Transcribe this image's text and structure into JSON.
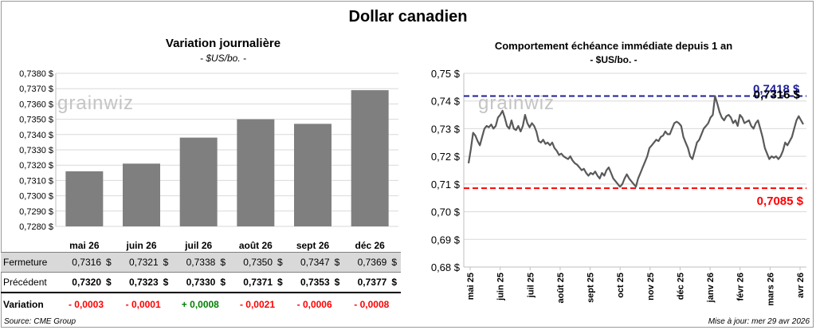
{
  "title": "Dollar canadien",
  "left_panel": {
    "title": "Variation  journalière",
    "subtitle": "- $US/bo. -"
  },
  "right_panel": {
    "title": "Comportement échéance immédiate depuis 1 an",
    "subtitle": "- $US/bo. -"
  },
  "watermark": "grainwiz",
  "chart_data": [
    {
      "type": "bar",
      "categories": [
        "mai 26",
        "juin 26",
        "juil 26",
        "août 26",
        "sept 26",
        "déc 26"
      ],
      "values": [
        0.7316,
        0.7321,
        0.7338,
        0.735,
        0.7347,
        0.7369
      ],
      "ylim": [
        0.728,
        0.738
      ],
      "yticks": [
        "0,7280 $",
        "0,7290 $",
        "0,7300 $",
        "0,7310 $",
        "0,7320 $",
        "0,7330 $",
        "0,7340 $",
        "0,7350 $",
        "0,7360 $",
        "0,7370 $",
        "0,7380 $"
      ],
      "bar_color": "#7f7f7f",
      "grid": true
    },
    {
      "type": "line",
      "ylim": [
        0.68,
        0.75
      ],
      "yticks": [
        "0,68 $",
        "0,69 $",
        "0,70 $",
        "0,71 $",
        "0,72 $",
        "0,73 $",
        "0,74 $",
        "0,75 $"
      ],
      "xticks": [
        "mai 25",
        "juin 25",
        "juil 25",
        "août 25",
        "sept 25",
        "oct 25",
        "nov 25",
        "déc 25",
        "janv 26",
        "févr 26",
        "mars 26",
        "avr 26"
      ],
      "series": [
        {
          "color": "#595959",
          "values": [
            0.7175,
            0.7225,
            0.7285,
            0.7275,
            0.7255,
            0.724,
            0.727,
            0.73,
            0.731,
            0.7305,
            0.7315,
            0.73,
            0.731,
            0.734,
            0.735,
            0.7365,
            0.734,
            0.731,
            0.73,
            0.733,
            0.73,
            0.7295,
            0.731,
            0.729,
            0.731,
            0.735,
            0.732,
            0.7305,
            0.732,
            0.731,
            0.729,
            0.7255,
            0.725,
            0.726,
            0.7245,
            0.725,
            0.724,
            0.725,
            0.723,
            0.722,
            0.7205,
            0.721,
            0.72,
            0.7195,
            0.719,
            0.72,
            0.7185,
            0.7175,
            0.717,
            0.716,
            0.715,
            0.7155,
            0.714,
            0.713,
            0.714,
            0.7135,
            0.7145,
            0.713,
            0.712,
            0.714,
            0.713,
            0.715,
            0.716,
            0.714,
            0.712,
            0.711,
            0.71,
            0.709,
            0.71,
            0.712,
            0.7135,
            0.712,
            0.711,
            0.71,
            0.709,
            0.712,
            0.714,
            0.716,
            0.718,
            0.72,
            0.723,
            0.724,
            0.725,
            0.726,
            0.7255,
            0.727,
            0.7275,
            0.729,
            0.728,
            0.728,
            0.73,
            0.732,
            0.7325,
            0.732,
            0.731,
            0.727,
            0.725,
            0.723,
            0.72,
            0.719,
            0.722,
            0.725,
            0.726,
            0.728,
            0.73,
            0.731,
            0.732,
            0.734,
            0.735,
            0.7418,
            0.739,
            0.736,
            0.734,
            0.733,
            0.7345,
            0.735,
            0.734,
            0.732,
            0.733,
            0.731,
            0.735,
            0.734,
            0.732,
            0.7325,
            0.733,
            0.731,
            0.73,
            0.732,
            0.733,
            0.73,
            0.727,
            0.723,
            0.721,
            0.719,
            0.72,
            0.7195,
            0.72,
            0.719,
            0.72,
            0.722,
            0.725,
            0.724,
            0.7255,
            0.727,
            0.73,
            0.733,
            0.7345,
            0.733,
            0.7316
          ]
        }
      ],
      "reference_lines": [
        {
          "value": 0.7418,
          "label": "0,7418 $",
          "color": "#1f1f9a"
        },
        {
          "value": 0.7085,
          "label": "0,7085 $",
          "color": "#ff0000"
        }
      ],
      "last_label": "0,7316 $",
      "grid": true
    }
  ],
  "table": {
    "rows": [
      {
        "label": "Fermeture",
        "values": [
          "0,7316",
          "0,7321",
          "0,7338",
          "0,7350",
          "0,7347",
          "0,7369"
        ],
        "currency": "$"
      },
      {
        "label": "Précédent",
        "values": [
          "0,7320",
          "0,7323",
          "0,7330",
          "0,7371",
          "0,7353",
          "0,7377"
        ],
        "currency": "$"
      },
      {
        "label": "Variation",
        "values": [
          "- 0,0003",
          "- 0,0001",
          "+ 0,0008",
          "- 0,0021",
          "- 0,0006",
          "- 0,0008"
        ],
        "colors": [
          "#ff0000",
          "#ff0000",
          "#008000",
          "#ff0000",
          "#ff0000",
          "#ff0000"
        ]
      }
    ]
  },
  "footer": {
    "source": "Source: CME Group",
    "updated": "Mise à jour: mer 29 avr 2026"
  }
}
